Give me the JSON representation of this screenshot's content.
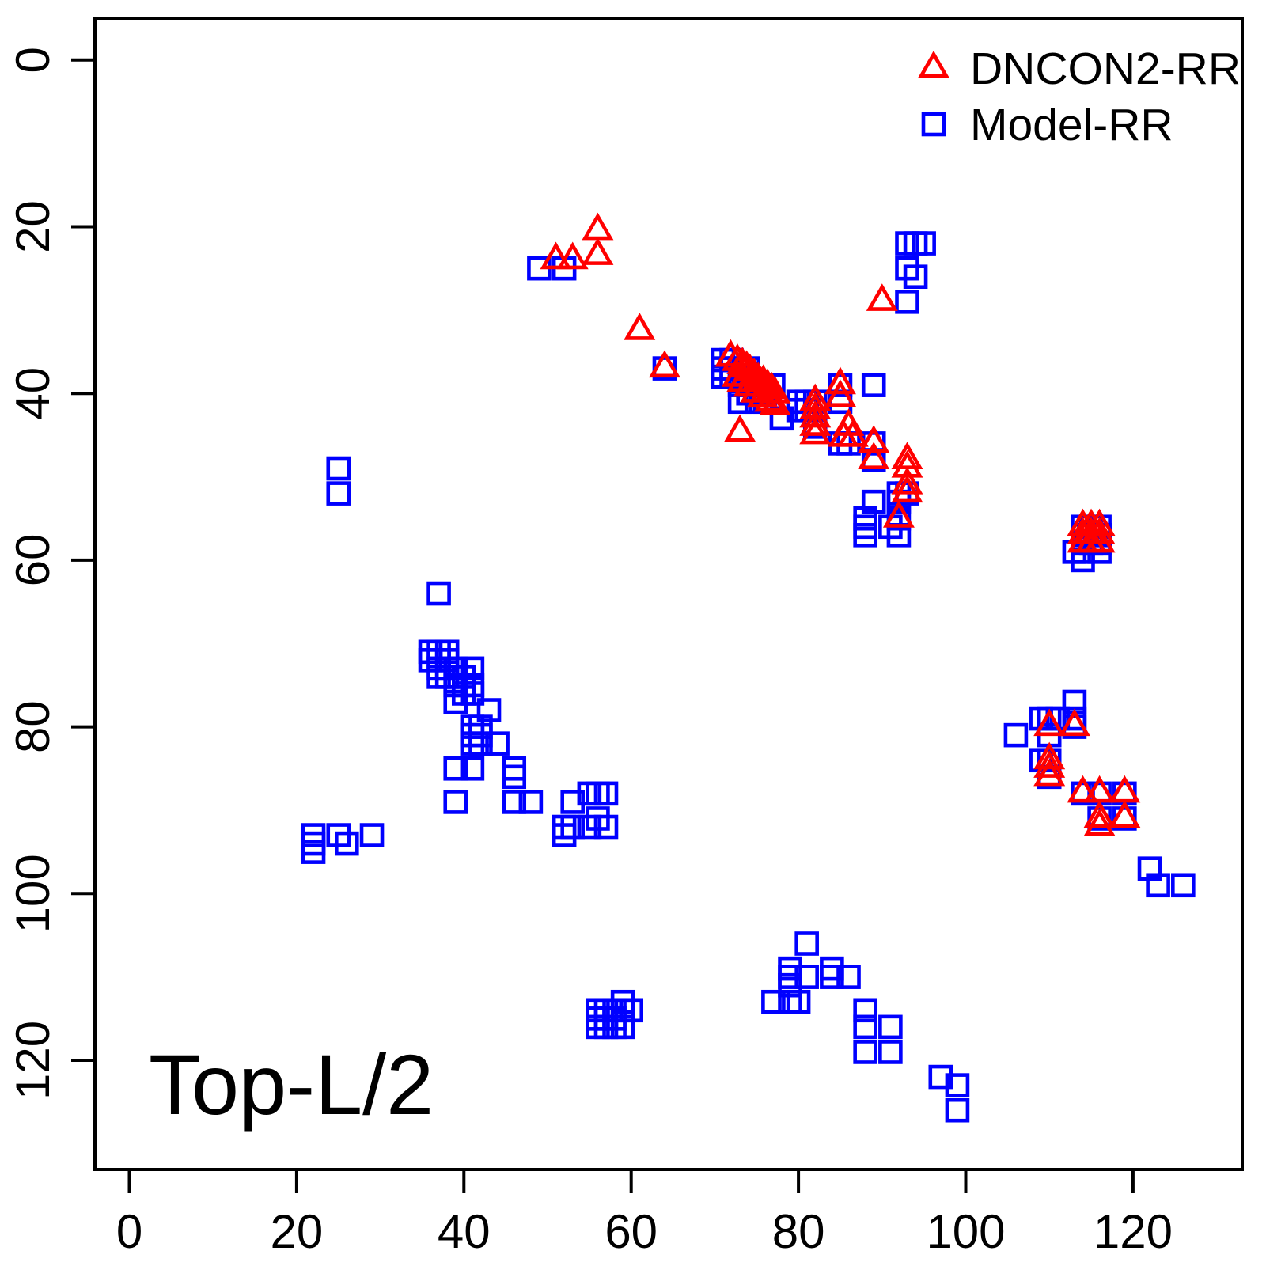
{
  "figure": {
    "title": "Top-L/2",
    "background": "#ffffff",
    "frame_color": "#000000"
  },
  "legend": {
    "items": [
      {
        "label": "DNCON2-RR",
        "marker": "triangle",
        "color": "#ff0000"
      },
      {
        "label": "Model-RR",
        "marker": "square",
        "color": "#0000ff"
      }
    ]
  },
  "chart_data": {
    "type": "scatter",
    "title": "Top-L/2",
    "xlabel": "",
    "ylabel": "",
    "grid": false,
    "legend_position": "top-right",
    "x_ticks": [
      0,
      20,
      40,
      60,
      80,
      100,
      120
    ],
    "y_ticks": [
      0,
      20,
      40,
      60,
      80,
      100,
      120
    ],
    "x_range": [
      -4.1,
      133.0
    ],
    "y_range": [
      -5.0,
      133.2
    ],
    "y_axis_inverted": true,
    "series": [
      {
        "name": "DNCON2-RR",
        "marker": "triangle",
        "color": "#ff0000",
        "points": [
          [
            51,
            24
          ],
          [
            53,
            24
          ],
          [
            56,
            20.5
          ],
          [
            56,
            23.5
          ],
          [
            61,
            32.5
          ],
          [
            64,
            37
          ],
          [
            90,
            29
          ],
          [
            71.9,
            35.7
          ],
          [
            72.7,
            36.2
          ],
          [
            73.3,
            36.6
          ],
          [
            73.8,
            37.0
          ],
          [
            74.2,
            37.4
          ],
          [
            74.7,
            37.9
          ],
          [
            75.2,
            38.4
          ],
          [
            75.8,
            38.7
          ],
          [
            76.3,
            39.2
          ],
          [
            76.8,
            39.6
          ],
          [
            77.2,
            40.1
          ],
          [
            72.7,
            38.1
          ],
          [
            73.3,
            38.7
          ],
          [
            74.1,
            39.3
          ],
          [
            74.9,
            40.0
          ],
          [
            75.7,
            40.6
          ],
          [
            76.6,
            41.1
          ],
          [
            77.2,
            41.5
          ],
          [
            73,
            44.7
          ],
          [
            82,
            41
          ],
          [
            82,
            42
          ],
          [
            82,
            43
          ],
          [
            82,
            44
          ],
          [
            82,
            45
          ],
          [
            85,
            39
          ],
          [
            85,
            40.5
          ],
          [
            86,
            44
          ],
          [
            85.4,
            45.3
          ],
          [
            86.5,
            45.3
          ],
          [
            89,
            46
          ],
          [
            89,
            48
          ],
          [
            93,
            48
          ],
          [
            93,
            49
          ],
          [
            93,
            51
          ],
          [
            93,
            52
          ],
          [
            92,
            55
          ],
          [
            114,
            56
          ],
          [
            115,
            56
          ],
          [
            116,
            56
          ],
          [
            114,
            57
          ],
          [
            115,
            57
          ],
          [
            116,
            57
          ],
          [
            114,
            58
          ],
          [
            115,
            58
          ],
          [
            116,
            58
          ],
          [
            110,
            80
          ],
          [
            113,
            80
          ],
          [
            110,
            84
          ],
          [
            110,
            85
          ],
          [
            110,
            86
          ],
          [
            114,
            88
          ],
          [
            116,
            88
          ],
          [
            119,
            88
          ],
          [
            116,
            91
          ],
          [
            116,
            92
          ],
          [
            119,
            91
          ]
        ]
      },
      {
        "name": "Model-RR",
        "marker": "square",
        "color": "#0000ff",
        "points": [
          [
            49,
            25
          ],
          [
            52,
            25
          ],
          [
            93,
            22
          ],
          [
            94,
            22
          ],
          [
            95,
            22
          ],
          [
            93,
            25
          ],
          [
            94,
            26
          ],
          [
            93,
            29
          ],
          [
            64,
            37
          ],
          [
            71,
            36
          ],
          [
            71,
            37
          ],
          [
            71,
            38
          ],
          [
            72,
            36
          ],
          [
            72,
            37
          ],
          [
            72,
            38
          ],
          [
            73,
            37
          ],
          [
            73,
            38
          ],
          [
            73,
            39
          ],
          [
            73,
            41
          ],
          [
            74,
            37
          ],
          [
            74,
            38
          ],
          [
            74,
            39
          ],
          [
            74,
            40
          ],
          [
            75,
            39
          ],
          [
            75,
            40
          ],
          [
            75,
            41
          ],
          [
            76,
            40
          ],
          [
            76,
            41
          ],
          [
            77,
            39
          ],
          [
            78,
            43
          ],
          [
            80,
            41
          ],
          [
            81,
            41
          ],
          [
            82,
            41
          ],
          [
            80,
            42
          ],
          [
            81,
            42
          ],
          [
            82,
            42
          ],
          [
            82,
            44
          ],
          [
            85,
            39
          ],
          [
            85,
            41
          ],
          [
            89,
            39
          ],
          [
            85,
            46
          ],
          [
            86,
            46
          ],
          [
            89,
            46
          ],
          [
            89,
            48
          ],
          [
            89,
            53
          ],
          [
            92,
            52
          ],
          [
            93,
            52
          ],
          [
            92,
            53
          ],
          [
            88,
            55
          ],
          [
            88,
            56
          ],
          [
            88,
            57
          ],
          [
            91,
            56
          ],
          [
            92,
            55
          ],
          [
            92,
            57
          ],
          [
            113,
            59
          ],
          [
            114,
            56
          ],
          [
            114,
            57
          ],
          [
            114,
            58
          ],
          [
            114,
            59
          ],
          [
            114,
            60
          ],
          [
            115,
            56
          ],
          [
            115,
            57
          ],
          [
            115,
            58
          ],
          [
            116,
            56
          ],
          [
            116,
            57
          ],
          [
            116,
            58
          ],
          [
            116,
            59
          ],
          [
            106,
            81
          ],
          [
            109,
            79
          ],
          [
            110,
            79
          ],
          [
            111,
            79
          ],
          [
            110,
            81
          ],
          [
            113,
            77
          ],
          [
            113,
            79
          ],
          [
            113,
            80
          ],
          [
            109,
            84
          ],
          [
            110,
            84
          ],
          [
            110,
            86
          ],
          [
            114,
            88
          ],
          [
            116,
            88
          ],
          [
            119,
            88
          ],
          [
            116,
            91
          ],
          [
            119,
            91
          ],
          [
            122,
            97
          ],
          [
            123,
            99
          ],
          [
            126,
            99
          ],
          [
            25,
            49
          ],
          [
            25,
            52
          ],
          [
            22,
            93
          ],
          [
            22,
            94
          ],
          [
            22,
            95
          ],
          [
            25,
            93
          ],
          [
            26,
            94
          ],
          [
            29,
            93
          ],
          [
            37,
            64
          ],
          [
            36,
            71
          ],
          [
            37,
            71
          ],
          [
            38,
            71
          ],
          [
            36,
            72
          ],
          [
            37,
            72
          ],
          [
            38,
            72
          ],
          [
            37,
            73
          ],
          [
            38,
            73
          ],
          [
            39,
            73
          ],
          [
            41,
            73
          ],
          [
            37,
            74
          ],
          [
            38,
            74
          ],
          [
            39,
            74
          ],
          [
            40,
            74
          ],
          [
            39,
            75
          ],
          [
            40,
            75
          ],
          [
            41,
            75
          ],
          [
            40,
            76
          ],
          [
            41,
            76
          ],
          [
            39,
            77
          ],
          [
            43,
            78
          ],
          [
            41,
            80
          ],
          [
            41,
            81
          ],
          [
            41,
            82
          ],
          [
            42,
            80
          ],
          [
            42,
            81
          ],
          [
            42,
            82
          ],
          [
            44,
            82
          ],
          [
            39,
            85
          ],
          [
            41,
            85
          ],
          [
            39,
            89
          ],
          [
            46,
            85
          ],
          [
            46,
            86
          ],
          [
            46,
            89
          ],
          [
            48,
            89
          ],
          [
            53,
            89
          ],
          [
            52,
            92
          ],
          [
            52,
            93
          ],
          [
            53,
            92
          ],
          [
            55,
            88
          ],
          [
            56,
            88
          ],
          [
            57,
            88
          ],
          [
            56,
            91
          ],
          [
            55,
            92
          ],
          [
            57,
            92
          ],
          [
            59,
            113
          ],
          [
            56,
            114
          ],
          [
            57,
            114
          ],
          [
            58,
            114
          ],
          [
            59,
            114
          ],
          [
            60,
            114
          ],
          [
            56,
            115
          ],
          [
            57,
            115
          ],
          [
            58,
            115
          ],
          [
            56,
            116
          ],
          [
            57,
            116
          ],
          [
            58,
            116
          ],
          [
            59,
            116
          ],
          [
            81,
            106
          ],
          [
            79,
            109
          ],
          [
            79,
            110
          ],
          [
            79,
            111
          ],
          [
            81,
            110
          ],
          [
            77,
            113
          ],
          [
            79,
            113
          ],
          [
            80,
            113
          ],
          [
            84,
            109
          ],
          [
            84,
            110
          ],
          [
            86,
            110
          ],
          [
            88,
            114
          ],
          [
            88,
            116
          ],
          [
            88,
            119
          ],
          [
            91,
            116
          ],
          [
            91,
            119
          ],
          [
            97,
            122
          ],
          [
            99,
            123
          ],
          [
            99,
            126
          ]
        ]
      }
    ]
  }
}
